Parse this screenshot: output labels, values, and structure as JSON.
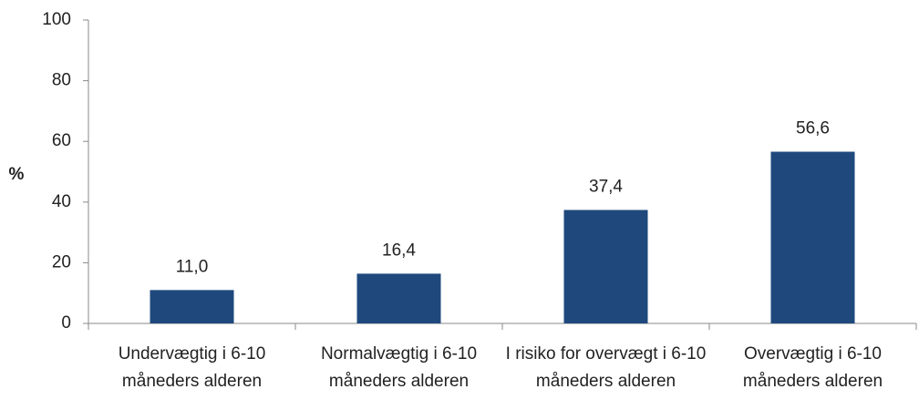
{
  "chart_data": {
    "type": "bar",
    "y_label": "%",
    "categories": [
      "Undervægtig i 6-10 måneders alderen",
      "Normalvægtig i 6-10 måneders alderen",
      "I risiko for overvægt i 6-10 måneders alderen",
      "Overvægtig i 6-10 måneders alderen"
    ],
    "values": [
      11.0,
      16.4,
      37.4,
      56.6
    ],
    "value_labels": [
      "11,0",
      "16,4",
      "37,4",
      "56,6"
    ],
    "color": "#1f497d",
    "ylim": [
      0,
      100
    ],
    "yticks": [
      0,
      20,
      40,
      60,
      80,
      100
    ],
    "grid": false
  }
}
